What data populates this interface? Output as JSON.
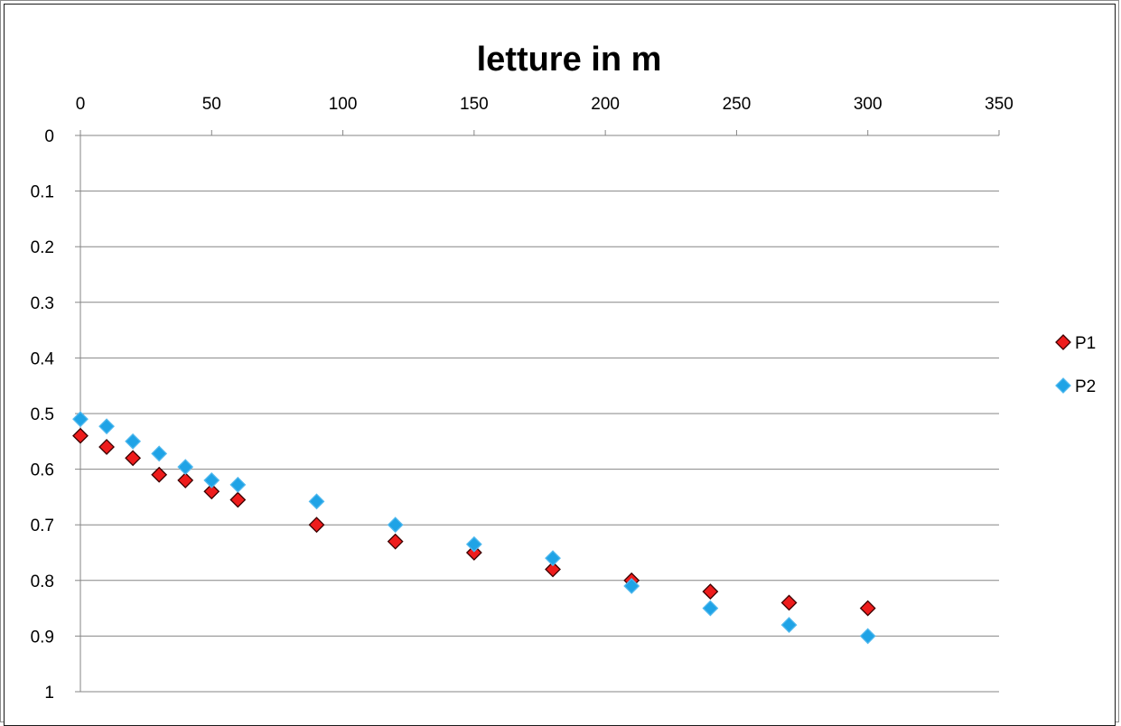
{
  "chart_data": {
    "type": "scatter",
    "title": "letture in m",
    "xlabel": "",
    "ylabel": "",
    "xlim": [
      0,
      350
    ],
    "ylim": [
      0,
      1
    ],
    "y_reversed": true,
    "x_axis_position": "top",
    "x_ticks": [
      "0",
      "50",
      "100",
      "150",
      "200",
      "250",
      "300",
      "350"
    ],
    "y_ticks": [
      "0",
      "0.1",
      "0.2",
      "0.3",
      "0.4",
      "0.5",
      "0.6",
      "0.7",
      "0.8",
      "0.9",
      "1"
    ],
    "grid": "horizontal",
    "legend_position": "right",
    "series": [
      {
        "name": "P1",
        "color": "#ee1c1c",
        "marker": "diamond",
        "x": [
          0,
          10,
          20,
          30,
          40,
          50,
          60,
          90,
          120,
          150,
          180,
          210,
          240,
          270,
          300
        ],
        "y": [
          0.54,
          0.56,
          0.58,
          0.61,
          0.62,
          0.64,
          0.655,
          0.7,
          0.73,
          0.75,
          0.78,
          0.8,
          0.82,
          0.84,
          0.85
        ]
      },
      {
        "name": "P2",
        "color": "#1fa3e6",
        "marker": "diamond",
        "x": [
          0,
          10,
          20,
          30,
          40,
          50,
          60,
          90,
          120,
          150,
          180,
          210,
          240,
          270,
          300
        ],
        "y": [
          0.51,
          0.523,
          0.55,
          0.572,
          0.596,
          0.62,
          0.628,
          0.658,
          0.7,
          0.735,
          0.76,
          0.81,
          0.85,
          0.88,
          0.9
        ]
      }
    ]
  }
}
